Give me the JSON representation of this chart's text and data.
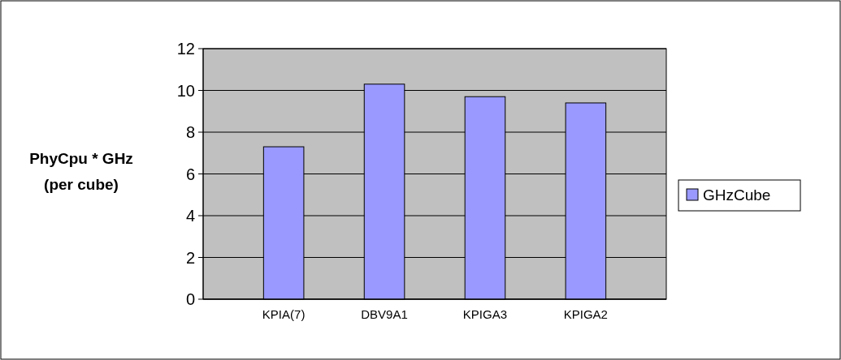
{
  "chart_data": {
    "type": "bar",
    "ylabel": "PhyCpu * GHz (per cube)",
    "categories": [
      "KPIA(7)",
      "DBV9A1",
      "KPIGA3",
      "KPIGA2"
    ],
    "series": [
      {
        "name": "GHzCube",
        "color": "#9999ff",
        "values": [
          7.3,
          10.3,
          9.7,
          9.4
        ]
      }
    ],
    "ylim": [
      0,
      12
    ],
    "yticks": [
      0,
      2,
      4,
      6,
      8,
      10,
      12
    ],
    "grid": "y",
    "legend": "right"
  }
}
